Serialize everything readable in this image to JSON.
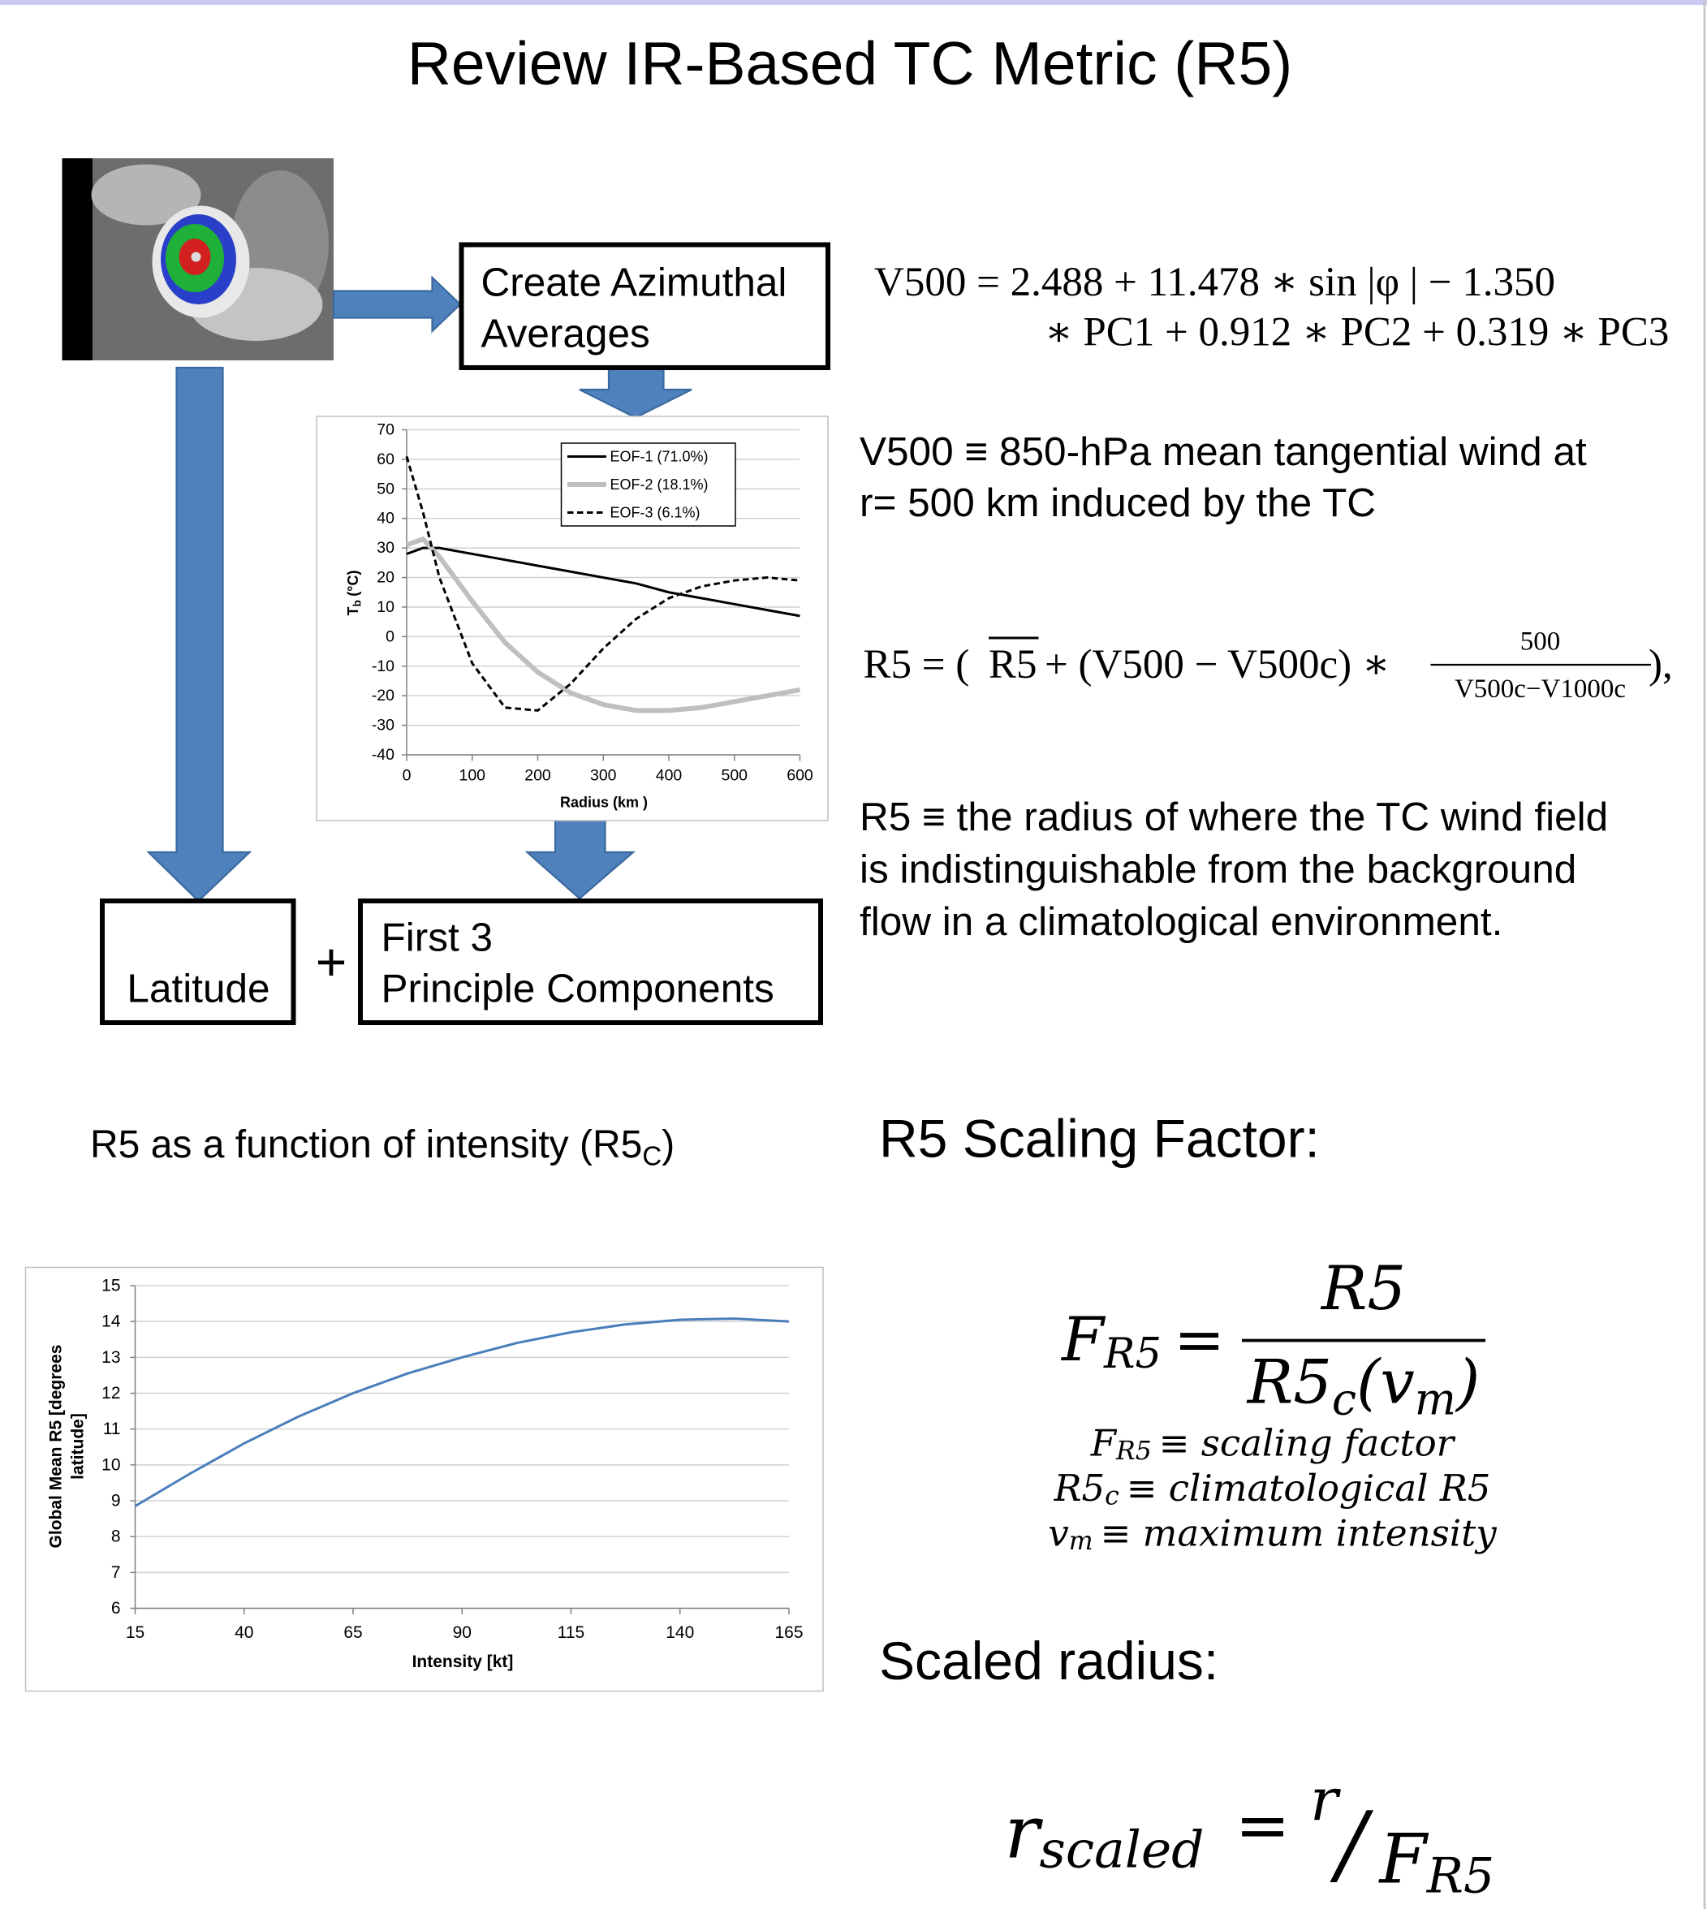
{
  "slide": {
    "title": "Review IR-Based TC Metric (R5)",
    "flow": {
      "azimuthal": [
        "Create Azimuthal",
        "Averages"
      ],
      "latitude": "Latitude",
      "plus": "+",
      "components": [
        "First 3",
        "Principle Components"
      ]
    },
    "v500_equation": [
      "V500 = 2.488 + 11.478 ∗ sin |φ | − 1.350",
      "∗ PC1 + 0.912 ∗ PC2 + 0.319 ∗ PC3"
    ],
    "v500_definition": [
      "V500 ≡ 850-hPa mean tangential wind at",
      "r= 500 km induced by the TC"
    ],
    "r5_equation": {
      "lhs": "R5 = (",
      "mean": "R5",
      "middle": "+ (V500 − V500c) ∗",
      "numerator": "500",
      "denominator": "V500c−V1000c",
      "end": "),"
    },
    "r5_definition": [
      "R5 ≡ the radius of where the TC wind field",
      "is indistinguishable from the background",
      "flow in a climatological environment."
    ],
    "r5c_caption": {
      "text": "R5 as a function of intensity (R5",
      "sub": "C",
      "end": ")"
    },
    "scaling_heading": "R5 Scaling Factor:",
    "scaling_formula": {
      "f": "F",
      "f_sub": "R5",
      "equals": "=",
      "numerator": "R5",
      "denominator": "R5",
      "denominator_sub": "c",
      "paren_open": "(v",
      "v_sub": "m",
      "paren_close": ")"
    },
    "scaling_definitions": [
      {
        "symbol": "F",
        "sub": "R5",
        "text": "≡ scaling factor"
      },
      {
        "symbol": "R5",
        "sub": "c",
        "text": "≡ climatological R5"
      },
      {
        "symbol": "v",
        "sub": "m",
        "text": "≡ maximum intensity"
      }
    ],
    "scaled_heading": "Scaled radius:",
    "scaled_formula": {
      "r": "r",
      "r_sub": "scaled",
      "equals": "=",
      "numerator": "r",
      "slash": "/",
      "f": "F",
      "f_sub": "R5"
    }
  },
  "chart_data": [
    {
      "type": "line",
      "x_label": "Radius (km )",
      "y_label": {
        "main": "T",
        "sub": "b",
        "unit": "(°C)"
      },
      "x": [
        0,
        25,
        50,
        100,
        150,
        200,
        250,
        300,
        350,
        400,
        450,
        500,
        550,
        600
      ],
      "series": [
        {
          "name": "EOF-1 (71.0%)",
          "color": "#000000",
          "style": "solid",
          "values": [
            28,
            30,
            30,
            28,
            26,
            24,
            22,
            20,
            18,
            15,
            13,
            11,
            9,
            7
          ]
        },
        {
          "name": "EOF-2 (18.1%)",
          "color": "#bfbfbf",
          "style": "thick",
          "values": [
            31,
            33,
            27,
            12,
            -2,
            -12,
            -19,
            -23,
            -25,
            -25,
            -24,
            -22,
            -20,
            -18
          ]
        },
        {
          "name": "EOF-3 (6.1%)",
          "color": "#000000",
          "style": "dashed",
          "values": [
            61,
            42,
            20,
            -9,
            -24,
            -25,
            -16,
            -4,
            6,
            13,
            17,
            19,
            20,
            19
          ]
        }
      ],
      "xlim": [
        0,
        600
      ],
      "xticks": [
        0,
        100,
        200,
        300,
        400,
        500,
        600
      ],
      "ylim": [
        -40,
        70
      ],
      "yticks": [
        -40,
        -30,
        -20,
        -10,
        0,
        10,
        20,
        30,
        40,
        50,
        60,
        70
      ],
      "grid": true,
      "legend": "upper right"
    },
    {
      "type": "line",
      "x_label": "Intensity [kt]",
      "y_label": [
        "Global Mean R5 [degrees",
        "latitude]"
      ],
      "x": [
        15,
        27.5,
        40,
        52.5,
        65,
        77.5,
        90,
        102.5,
        115,
        127.5,
        140,
        152.5,
        165
      ],
      "values": [
        8.85,
        9.75,
        10.6,
        11.35,
        12.0,
        12.55,
        13.0,
        13.4,
        13.7,
        13.92,
        14.05,
        14.08,
        14.0
      ],
      "color": "#4a7ebb",
      "xlim": [
        15,
        165
      ],
      "xticks": [
        15,
        40,
        65,
        90,
        115,
        140,
        165
      ],
      "ylim": [
        6,
        15
      ],
      "yticks": [
        6,
        7,
        8,
        9,
        10,
        11,
        12,
        13,
        14,
        15
      ],
      "grid": true
    }
  ]
}
